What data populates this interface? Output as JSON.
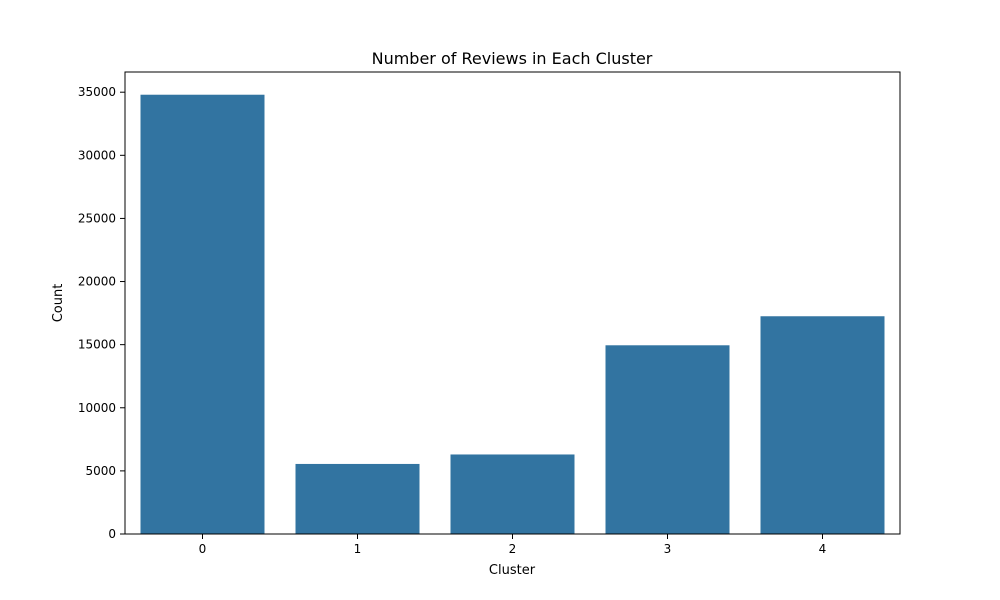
{
  "chart_data": {
    "type": "bar",
    "title": "Number of Reviews in Each Cluster",
    "xlabel": "Cluster",
    "ylabel": "Count",
    "categories": [
      "0",
      "1",
      "2",
      "3",
      "4"
    ],
    "values": [
      34800,
      5550,
      6300,
      14950,
      17250
    ],
    "ylim": [
      0,
      36600
    ],
    "yticks": [
      0,
      5000,
      10000,
      15000,
      20000,
      25000,
      30000,
      35000
    ],
    "grid": false,
    "bar_color": "#3274a1"
  }
}
